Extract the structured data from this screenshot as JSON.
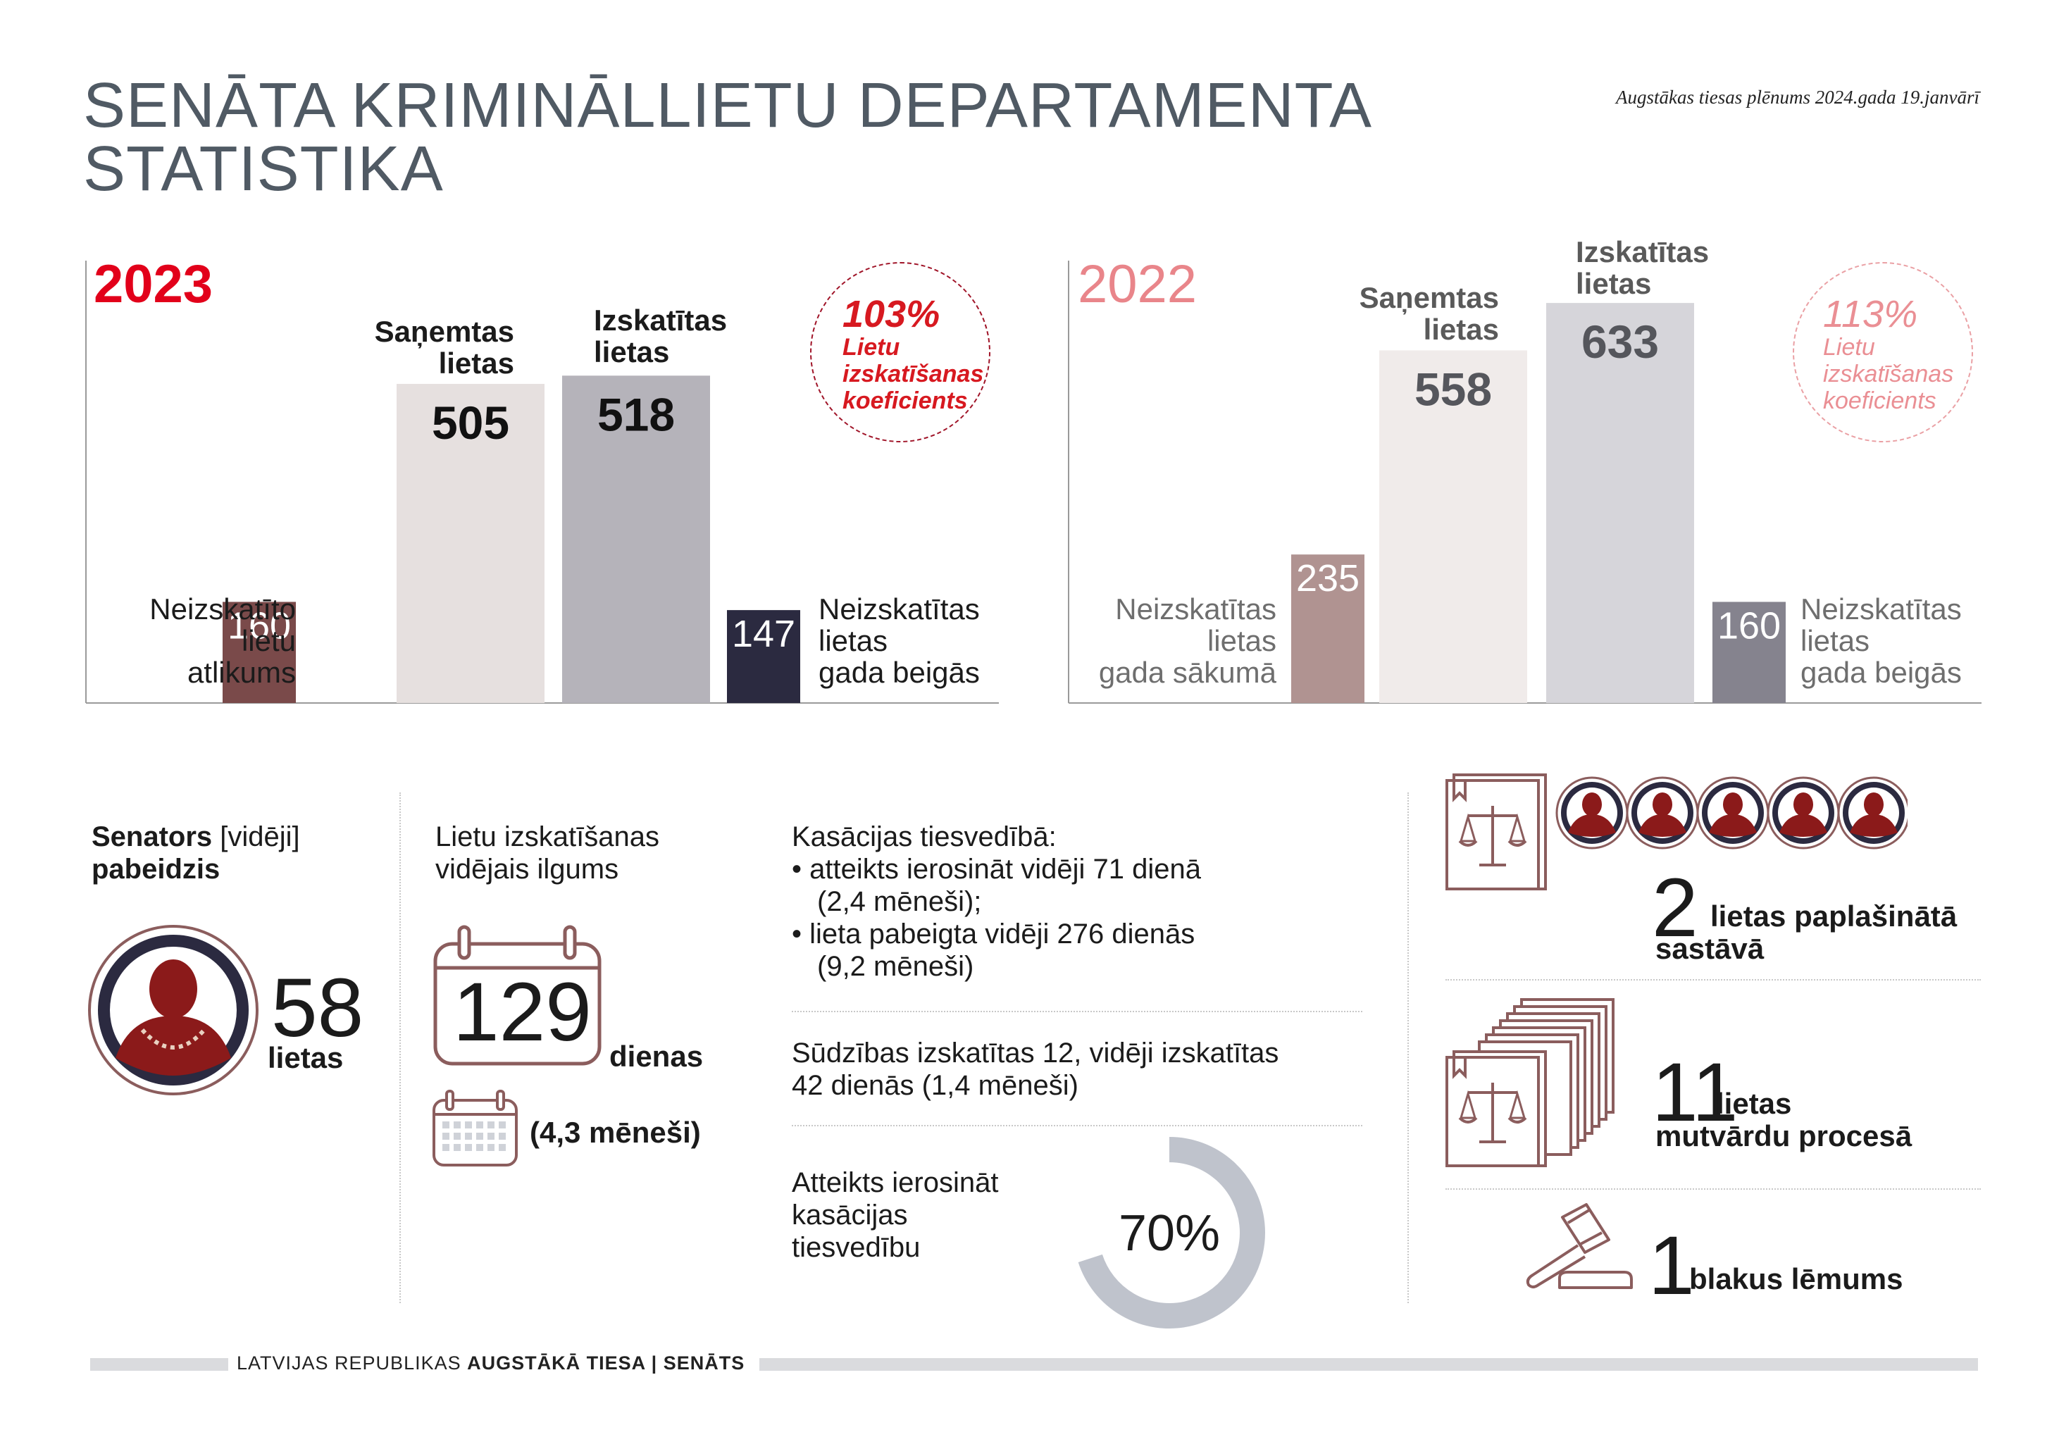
{
  "header": {
    "title_line1": "SENĀTA KRIMINĀLLIETU DEPARTAMENTA",
    "title_line2": "STATISTIKA",
    "source": "Augstākas tiesas plēnums 2024.gada 19.janvārī"
  },
  "chart_data": [
    {
      "type": "bar",
      "title": "2023",
      "categories": [
        "Neizskatīto lietu atlikums",
        "Saņemtas lietas",
        "Izskatītas lietas",
        "Neizskatītas lietas gada beigās"
      ],
      "values": [
        160,
        505,
        518,
        147
      ],
      "ylim": [
        0,
        700
      ],
      "grid": false,
      "colors": [
        "#7a4a4a",
        "#e6e0df",
        "#b5b3ba",
        "#2b2a40"
      ],
      "coefficient": {
        "value": "103%",
        "label_1": "Lietu",
        "label_2": "izskatīšanas",
        "label_3": "koeficients"
      }
    },
    {
      "type": "bar",
      "title": "2022",
      "categories": [
        "Neizskatītas lietas gada sākumā",
        "Saņemtas lietas",
        "Izskatītas lietas",
        "Neizskatītas lietas gada beigās"
      ],
      "values": [
        235,
        558,
        633,
        160
      ],
      "ylim": [
        0,
        700
      ],
      "grid": false,
      "colors": [
        "#b09391",
        "#f0ebea",
        "#d6d5da",
        "#85838e"
      ],
      "coefficient": {
        "value": "113%",
        "label_1": "Lietu",
        "label_2": "izskatīšanas",
        "label_3": "koeficients"
      }
    }
  ],
  "labels23": {
    "received_1": "Saņemtas",
    "received_2": "lietas",
    "reviewed_1": "Izskatītas",
    "reviewed_2": "lietas",
    "start_1": "Neizskatīto",
    "start_2": "lietu",
    "start_3": "atlikums",
    "end_1": "Neizskatītas",
    "end_2": "lietas",
    "end_3": "gada beigās"
  },
  "labels22": {
    "received_1": "Saņemtas",
    "received_2": "lietas",
    "reviewed_1": "Izskatītas",
    "reviewed_2": "lietas",
    "start_1": "Neizskatītas",
    "start_2": "lietas",
    "start_3": "gada sākumā",
    "end_1": "Neizskatītas",
    "end_2": "lietas",
    "end_3": "gada beigās"
  },
  "senator": {
    "title_bold_1": "Senators",
    "title_normal": " [vidēji]",
    "title_bold_2": "pabeidzis",
    "value": "58",
    "unit": "lietas"
  },
  "duration": {
    "title_1": "Lietu izskatīšanas",
    "title_2": "vidējais ilgums",
    "value": "129",
    "unit": "dienas",
    "months": "(4,3 mēneši)"
  },
  "cassation": {
    "heading": "Kasācijas tiesvedībā:",
    "bullet1_a": "• atteikts ierosināt vidēji 71 dienā",
    "bullet1_b": "(2,4 mēneši);",
    "bullet2_a": "• lieta pabeigta vidēji 276 dienās",
    "bullet2_b": "(9,2 mēneši)",
    "complaints_1": "Sūdzības izskatītas 12, vidēji izskatītas",
    "complaints_2": "42 dienās (1,4 mēneši)",
    "refused_1": "Atteikts ierosināt",
    "refused_2": "kasācijas",
    "refused_3": "tiesvedību",
    "refused_value": "70%",
    "refused_fraction": 0.7
  },
  "extended": {
    "value": "2",
    "text_1": "lietas paplašinātā",
    "text_2": "sastāvā"
  },
  "oral": {
    "value": "11",
    "text_1": "lietas",
    "text_2": "mutvārdu procesā"
  },
  "side": {
    "value": "1",
    "text_1": "blakus lēmums"
  },
  "footer": {
    "part1": "LATVIJAS REPUBLIKAS ",
    "part2": "AUGSTĀKĀ TIESA | SENĀTS"
  },
  "colors": {
    "accent_red": "#e2001a",
    "title_gray": "#505a64",
    "icon_brown": "#7a4a4a",
    "navy": "#2b2a40",
    "donut_gray": "#bfc3cc"
  }
}
